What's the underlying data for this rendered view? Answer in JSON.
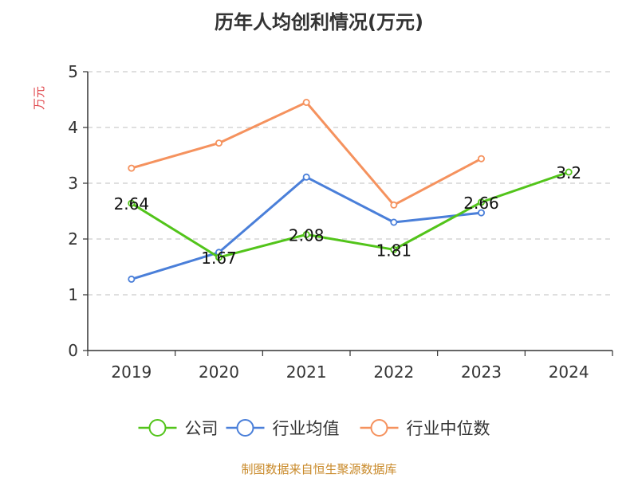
{
  "title": "历年人均创利情况(万元)",
  "footer": "制图数据来自恒生聚源数据库",
  "colors": {
    "ylabel": "#e0474c",
    "grid": "#cccccc",
    "axis": "#333333"
  },
  "chart_data": {
    "type": "line",
    "title": "历年人均创利情况(万元)",
    "xlabel": "",
    "ylabel": "万元",
    "ylim": [
      0,
      5
    ],
    "yticks": [
      0,
      1,
      2,
      3,
      4,
      5
    ],
    "grid": "horizontal dashed",
    "legend_position": "bottom-center",
    "categories": [
      "2019",
      "2020",
      "2021",
      "2022",
      "2023",
      "2024"
    ],
    "series": [
      {
        "name": "公司",
        "color": "#52c41a",
        "values": [
          2.64,
          1.67,
          2.08,
          1.81,
          2.66,
          3.2
        ],
        "show_labels": true,
        "labels": [
          "2.64",
          "1.67",
          "2.08",
          "1.81",
          "2.66",
          "3.2"
        ]
      },
      {
        "name": "行业均值",
        "color": "#4a7fd9",
        "values": [
          1.28,
          1.76,
          3.11,
          2.3,
          2.47,
          null
        ],
        "show_labels": false
      },
      {
        "name": "行业中位数",
        "color": "#f5925e",
        "values": [
          3.27,
          3.72,
          4.45,
          2.61,
          3.44,
          null
        ],
        "show_labels": false
      }
    ]
  }
}
